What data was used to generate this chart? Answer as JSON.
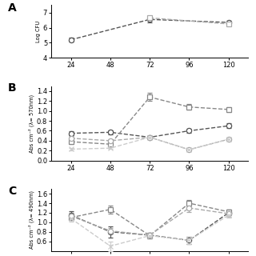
{
  "x": [
    24,
    48,
    72,
    96,
    120
  ],
  "xticks": [
    24,
    48,
    72,
    96,
    120
  ],
  "background_color": "#ffffff",
  "panel_A": {
    "label": "A",
    "ylabel": "Log CFU",
    "ylim": [
      4,
      7.5
    ],
    "yticks": [
      4,
      5,
      6,
      7
    ],
    "series_1": {
      "x": [
        24,
        72,
        120
      ],
      "y": [
        5.2,
        6.55,
        6.35
      ],
      "yerr": [
        0.15,
        0.18,
        0.1
      ],
      "color": "#555555",
      "marker": "o"
    },
    "series_2": {
      "x": [
        72,
        120
      ],
      "y": [
        6.65,
        6.25
      ],
      "yerr": [
        0.12,
        0.1
      ],
      "color": "#aaaaaa",
      "marker": "s"
    }
  },
  "panel_B": {
    "label": "B",
    "ylabel": "Abs cm⁻² (λ= 570nm)",
    "ylim": [
      0.0,
      1.5
    ],
    "yticks": [
      0.0,
      0.2,
      0.4,
      0.6,
      0.8,
      1.0,
      1.2,
      1.4
    ],
    "series": [
      {
        "x": [
          24,
          48,
          72,
          96,
          120
        ],
        "y": [
          0.55,
          0.57,
          0.47,
          0.6,
          0.7
        ],
        "yerr": [
          0.04,
          0.04,
          0.03,
          0.04,
          0.05
        ],
        "color": "#555555",
        "marker": "o",
        "filled": false
      },
      {
        "x": [
          24,
          48,
          72,
          96,
          120
        ],
        "y": [
          0.38,
          0.33,
          1.28,
          1.08,
          1.03
        ],
        "yerr": [
          0.04,
          0.04,
          0.08,
          0.06,
          0.05
        ],
        "color": "#888888",
        "marker": "s",
        "filled": false
      },
      {
        "x": [
          24,
          48,
          72,
          96,
          120
        ],
        "y": [
          0.45,
          0.4,
          0.47,
          0.22,
          0.43
        ],
        "yerr": [
          0.04,
          0.03,
          0.04,
          0.03,
          0.03
        ],
        "color": "#aaaaaa",
        "marker": "o",
        "filled": false
      },
      {
        "x": [
          24,
          48,
          72,
          96,
          120
        ],
        "y": [
          0.23,
          0.25,
          0.47,
          0.22,
          0.43
        ],
        "yerr": [
          0.02,
          0.02,
          0.03,
          0.02,
          0.03
        ],
        "color": "#cccccc",
        "marker": "x",
        "filled": true
      }
    ]
  },
  "panel_C": {
    "label": "C",
    "ylabel": "Abs cm⁻² (λ= 490nm)",
    "ylim": [
      0.4,
      1.7
    ],
    "yticks": [
      0.6,
      0.8,
      1.0,
      1.2,
      1.4,
      1.6
    ],
    "series": [
      {
        "x": [
          24,
          48,
          72,
          96,
          120
        ],
        "y": [
          1.15,
          0.8,
          0.73,
          0.62,
          1.2
        ],
        "yerr": [
          0.08,
          0.12,
          0.05,
          0.07,
          0.06
        ],
        "color": "#555555",
        "marker": "o",
        "filled": false
      },
      {
        "x": [
          24,
          48,
          72,
          96,
          120
        ],
        "y": [
          1.1,
          1.27,
          0.72,
          1.4,
          1.22
        ],
        "yerr": [
          0.06,
          0.08,
          0.05,
          0.07,
          0.05
        ],
        "color": "#888888",
        "marker": "s",
        "filled": false
      },
      {
        "x": [
          24,
          48,
          72,
          96,
          120
        ],
        "y": [
          1.13,
          0.82,
          0.73,
          1.3,
          1.18
        ],
        "yerr": [
          0.07,
          0.06,
          0.05,
          0.08,
          0.06
        ],
        "color": "#aaaaaa",
        "marker": "o",
        "filled": false
      },
      {
        "x": [
          24,
          48,
          72,
          96,
          120
        ],
        "y": [
          1.08,
          0.5,
          0.72,
          0.62,
          1.15
        ],
        "yerr": [
          0.06,
          0.1,
          0.05,
          0.07,
          0.06
        ],
        "color": "#cccccc",
        "marker": "x",
        "filled": true
      }
    ]
  }
}
